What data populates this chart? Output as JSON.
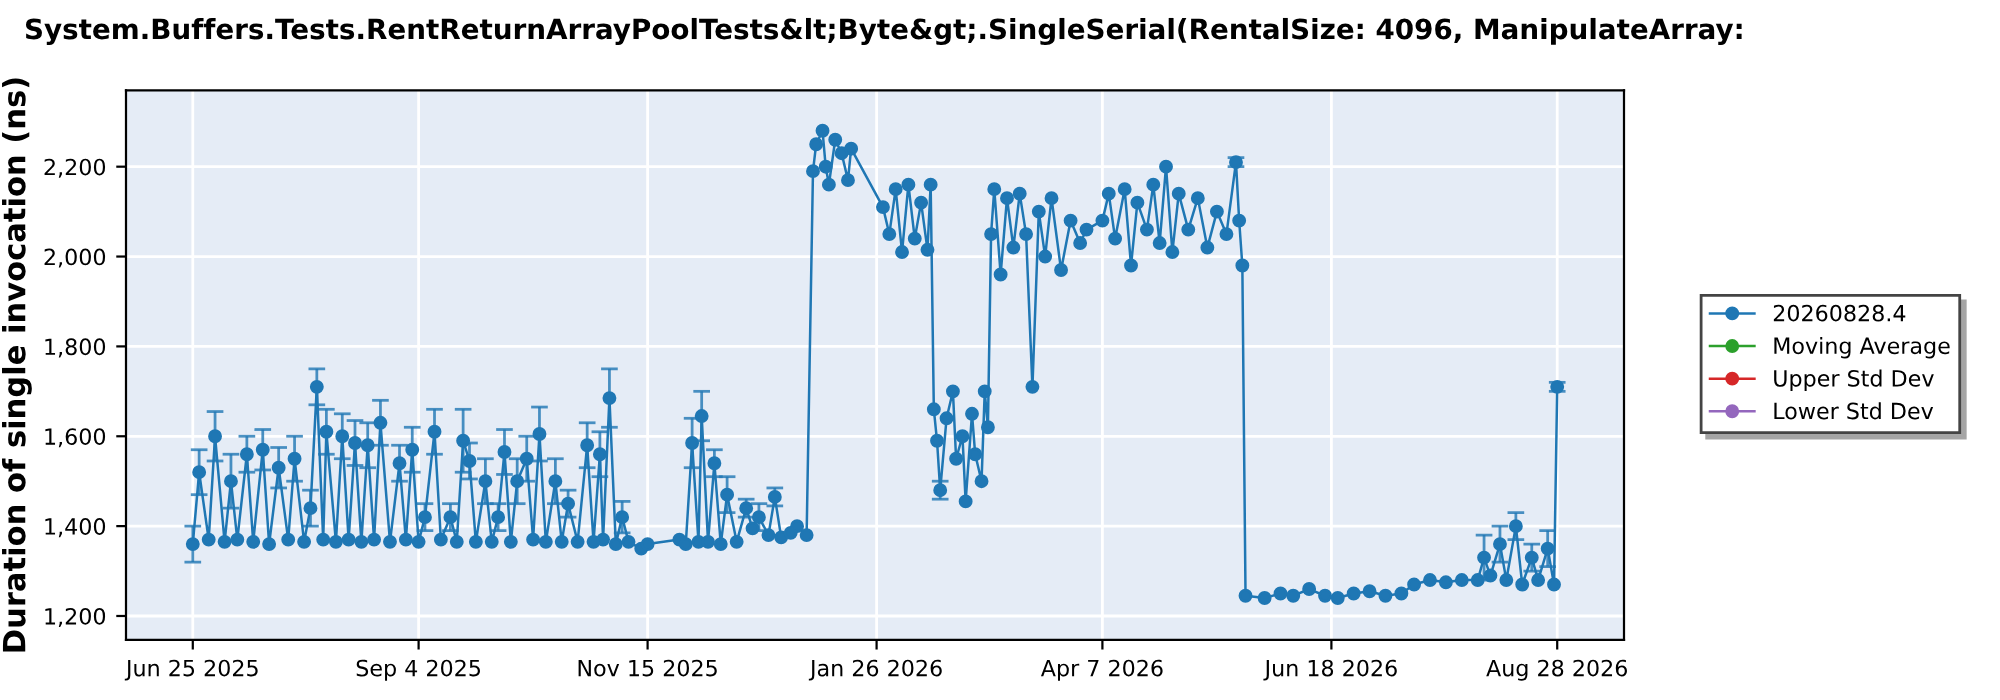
{
  "chart_data": {
    "type": "line",
    "title": "System.Buffers.Tests.RentReturnArrayPoolTests&lt;Byte&gt;.SingleSerial(RentalSize: 4096, ManipulateArray:",
    "ylabel": "Duration of single invocation (ns)",
    "xlim": [
      "2025-06-04",
      "2026-09-18"
    ],
    "xticks": [
      {
        "value": "2025-06-25",
        "label": "Jun 25 2025"
      },
      {
        "value": "2025-09-04",
        "label": "Sep 4 2025"
      },
      {
        "value": "2025-11-15",
        "label": "Nov 15 2025"
      },
      {
        "value": "2026-01-26",
        "label": "Jan 26 2026"
      },
      {
        "value": "2026-04-07",
        "label": "Apr 7 2026"
      },
      {
        "value": "2026-06-18",
        "label": "Jun 18 2026"
      },
      {
        "value": "2026-08-28",
        "label": "Aug 28 2026"
      }
    ],
    "ylim": [
      1147,
      2370
    ],
    "yticks": [
      {
        "value": 1200,
        "label": "1,200"
      },
      {
        "value": 1400,
        "label": "1,400"
      },
      {
        "value": 1600,
        "label": "1,600"
      },
      {
        "value": 1800,
        "label": "1,800"
      },
      {
        "value": 2000,
        "label": "2,000"
      },
      {
        "value": 2200,
        "label": "2,200"
      }
    ],
    "grid": true,
    "legend": "right",
    "marker": "circle",
    "line_style": "solid",
    "series": [
      {
        "name": "20260828.4",
        "color": "#1f77b4",
        "x": [
          "2025-06-25",
          "2025-06-27",
          "2025-06-30",
          "2025-07-02",
          "2025-07-05",
          "2025-07-07",
          "2025-07-09",
          "2025-07-12",
          "2025-07-14",
          "2025-07-17",
          "2025-07-19",
          "2025-07-22",
          "2025-07-25",
          "2025-07-27",
          "2025-07-30",
          "2025-08-01",
          "2025-08-03",
          "2025-08-05",
          "2025-08-06",
          "2025-08-09",
          "2025-08-11",
          "2025-08-13",
          "2025-08-15",
          "2025-08-17",
          "2025-08-19",
          "2025-08-21",
          "2025-08-23",
          "2025-08-26",
          "2025-08-29",
          "2025-08-31",
          "2025-09-02",
          "2025-09-04",
          "2025-09-06",
          "2025-09-09",
          "2025-09-11",
          "2025-09-14",
          "2025-09-16",
          "2025-09-18",
          "2025-09-20",
          "2025-09-22",
          "2025-09-25",
          "2025-09-27",
          "2025-09-29",
          "2025-10-01",
          "2025-10-03",
          "2025-10-05",
          "2025-10-08",
          "2025-10-10",
          "2025-10-12",
          "2025-10-14",
          "2025-10-17",
          "2025-10-19",
          "2025-10-21",
          "2025-10-24",
          "2025-10-27",
          "2025-10-29",
          "2025-10-31",
          "2025-11-01",
          "2025-11-03",
          "2025-11-05",
          "2025-11-07",
          "2025-11-09",
          "2025-11-13",
          "2025-11-15",
          "2025-11-25",
          "2025-11-27",
          "2025-11-29",
          "2025-12-01",
          "2025-12-02",
          "2025-12-04",
          "2025-12-06",
          "2025-12-08",
          "2025-12-10",
          "2025-12-13",
          "2025-12-16",
          "2025-12-18",
          "2025-12-20",
          "2025-12-23",
          "2025-12-25",
          "2025-12-27",
          "2025-12-30",
          "2026-01-01",
          "2026-01-04",
          "2026-01-06",
          "2026-01-07",
          "2026-01-09",
          "2026-01-10",
          "2026-01-11",
          "2026-01-13",
          "2026-01-15",
          "2026-01-17",
          "2026-01-18",
          "2026-01-28",
          "2026-01-30",
          "2026-02-01",
          "2026-02-03",
          "2026-02-05",
          "2026-02-07",
          "2026-02-09",
          "2026-02-11",
          "2026-02-12",
          "2026-02-13",
          "2026-02-14",
          "2026-02-15",
          "2026-02-17",
          "2026-02-19",
          "2026-02-20",
          "2026-02-22",
          "2026-02-23",
          "2026-02-25",
          "2026-02-26",
          "2026-02-28",
          "2026-03-01",
          "2026-03-02",
          "2026-03-03",
          "2026-03-04",
          "2026-03-06",
          "2026-03-08",
          "2026-03-10",
          "2026-03-12",
          "2026-03-14",
          "2026-03-16",
          "2026-03-18",
          "2026-03-20",
          "2026-03-22",
          "2026-03-25",
          "2026-03-28",
          "2026-03-31",
          "2026-04-02",
          "2026-04-07",
          "2026-04-09",
          "2026-04-11",
          "2026-04-14",
          "2026-04-16",
          "2026-04-18",
          "2026-04-21",
          "2026-04-23",
          "2026-04-25",
          "2026-04-27",
          "2026-04-29",
          "2026-05-01",
          "2026-05-04",
          "2026-05-07",
          "2026-05-10",
          "2026-05-13",
          "2026-05-16",
          "2026-05-19",
          "2026-05-20",
          "2026-05-21",
          "2026-05-22",
          "2026-05-28",
          "2026-06-02",
          "2026-06-06",
          "2026-06-11",
          "2026-06-16",
          "2026-06-20",
          "2026-06-25",
          "2026-06-30",
          "2026-07-05",
          "2026-07-10",
          "2026-07-14",
          "2026-07-19",
          "2026-07-24",
          "2026-07-29",
          "2026-08-03",
          "2026-08-05",
          "2026-08-07",
          "2026-08-10",
          "2026-08-12",
          "2026-08-15",
          "2026-08-17",
          "2026-08-20",
          "2026-08-22",
          "2026-08-25",
          "2026-08-27",
          "2026-08-28"
        ],
        "values": [
          1360,
          1520,
          1370,
          1600,
          1365,
          1500,
          1370,
          1560,
          1365,
          1570,
          1360,
          1530,
          1370,
          1550,
          1365,
          1440,
          1710,
          1370,
          1610,
          1365,
          1600,
          1370,
          1585,
          1365,
          1580,
          1370,
          1630,
          1365,
          1540,
          1370,
          1570,
          1365,
          1420,
          1610,
          1370,
          1420,
          1365,
          1590,
          1545,
          1365,
          1500,
          1365,
          1420,
          1565,
          1365,
          1500,
          1550,
          1370,
          1605,
          1365,
          1500,
          1365,
          1450,
          1365,
          1580,
          1365,
          1560,
          1370,
          1685,
          1360,
          1420,
          1365,
          1350,
          1360,
          1370,
          1360,
          1585,
          1365,
          1645,
          1365,
          1540,
          1360,
          1470,
          1365,
          1440,
          1395,
          1420,
          1380,
          1465,
          1375,
          1385,
          1400,
          1380,
          2190,
          2250,
          2280,
          2200,
          2160,
          2260,
          2230,
          2170,
          2240,
          2110,
          2050,
          2150,
          2010,
          2160,
          2040,
          2120,
          2015,
          2160,
          1660,
          1590,
          1480,
          1640,
          1700,
          1550,
          1600,
          1455,
          1650,
          1560,
          1500,
          1700,
          1620,
          2050,
          2150,
          1960,
          2130,
          2020,
          2140,
          2050,
          1710,
          2100,
          2000,
          2130,
          1970,
          2080,
          2030,
          2060,
          2080,
          2140,
          2040,
          2150,
          1980,
          2120,
          2060,
          2160,
          2030,
          2200,
          2010,
          2140,
          2060,
          2130,
          2020,
          2100,
          2050,
          2210,
          2080,
          1980,
          1245,
          1240,
          1250,
          1245,
          1260,
          1245,
          1240,
          1250,
          1255,
          1245,
          1250,
          1270,
          1280,
          1275,
          1280,
          1280,
          1330,
          1290,
          1360,
          1280,
          1400,
          1270,
          1330,
          1280,
          1350,
          1270,
          1710
        ],
        "errors": [
          40,
          50,
          null,
          55,
          null,
          60,
          null,
          40,
          null,
          45,
          null,
          45,
          null,
          50,
          null,
          40,
          40,
          null,
          50,
          null,
          50,
          null,
          50,
          null,
          50,
          null,
          50,
          null,
          40,
          null,
          50,
          null,
          30,
          50,
          null,
          30,
          null,
          70,
          40,
          null,
          50,
          null,
          30,
          50,
          null,
          50,
          50,
          null,
          60,
          null,
          50,
          null,
          30,
          null,
          50,
          null,
          50,
          null,
          65,
          null,
          35,
          null,
          null,
          null,
          null,
          null,
          55,
          null,
          55,
          null,
          30,
          null,
          40,
          null,
          20,
          null,
          30,
          null,
          20,
          null,
          null,
          null,
          null,
          null,
          null,
          null,
          null,
          null,
          null,
          null,
          null,
          null,
          null,
          null,
          null,
          null,
          null,
          null,
          null,
          null,
          null,
          null,
          null,
          20,
          null,
          null,
          null,
          null,
          null,
          null,
          null,
          null,
          null,
          null,
          null,
          null,
          null,
          null,
          null,
          null,
          null,
          null,
          null,
          null,
          null,
          null,
          null,
          null,
          null,
          null,
          null,
          null,
          null,
          null,
          null,
          null,
          null,
          null,
          null,
          null,
          null,
          null,
          null,
          null,
          null,
          null,
          10,
          null,
          null,
          null,
          null,
          null,
          null,
          null,
          null,
          null,
          null,
          null,
          null,
          null,
          null,
          null,
          null,
          null,
          null,
          50,
          null,
          40,
          null,
          30,
          null,
          30,
          null,
          40,
          null,
          10
        ]
      },
      {
        "name": "Moving Average",
        "color": "#2ca02c"
      },
      {
        "name": "Upper Std Dev",
        "color": "#d62728"
      },
      {
        "name": "Lower Std Dev",
        "color": "#9467bd"
      }
    ]
  }
}
